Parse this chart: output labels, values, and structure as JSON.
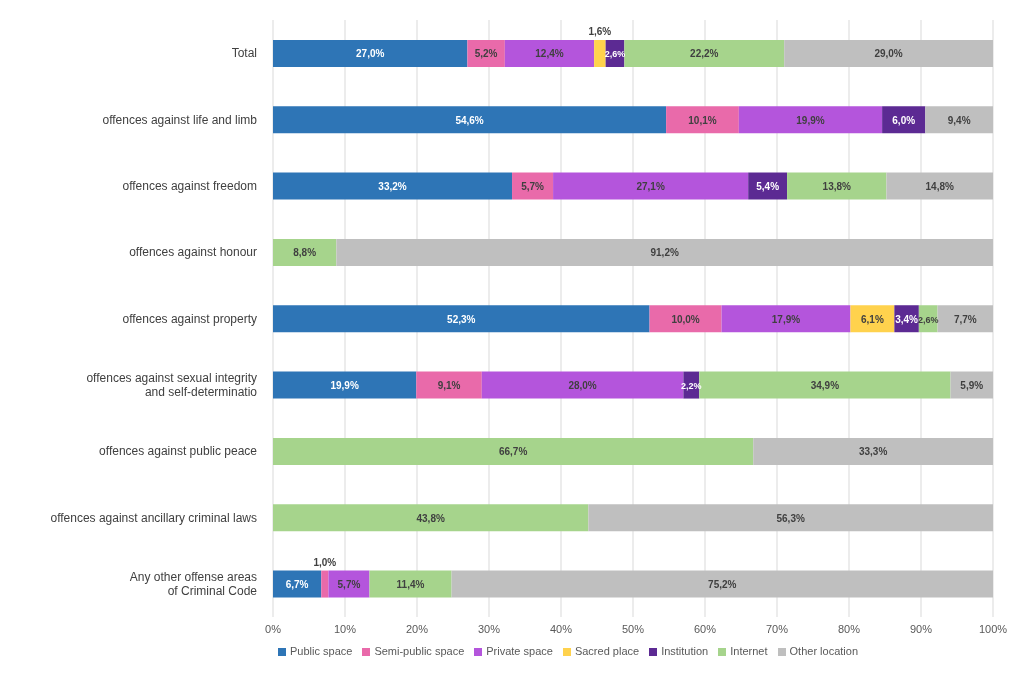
{
  "chart_data": {
    "type": "bar",
    "orientation": "horizontal",
    "stacked": true,
    "categories": [
      "Total",
      "offences against life and limb",
      "offences against freedom",
      "offences against honour",
      "offences against property",
      "offences against sexual integrity\nand self-determinatio",
      "offences against public peace",
      "offences against ancillary criminal laws",
      "Any other offense areas\nof Criminal Code"
    ],
    "series": [
      {
        "name": "Public space",
        "color": "#2e75b6",
        "values": [
          27.0,
          54.6,
          33.2,
          null,
          52.3,
          19.9,
          null,
          null,
          6.7
        ],
        "value_labels": [
          "27,0%",
          "54,6%",
          "33,2%",
          null,
          "52,3%",
          "19,9%",
          null,
          null,
          "6,7%"
        ]
      },
      {
        "name": "Semi-public space",
        "color": "#e96aaa",
        "values": [
          5.2,
          10.1,
          5.7,
          null,
          10.0,
          9.1,
          null,
          null,
          1.0
        ],
        "value_labels": [
          "5,2%",
          "10,1%",
          "5,7%",
          null,
          "10,0%",
          "9,1%",
          null,
          null,
          "1,0%"
        ]
      },
      {
        "name": "Private space",
        "color": "#b455dc",
        "values": [
          12.4,
          19.9,
          27.1,
          null,
          17.9,
          28.0,
          null,
          null,
          5.7
        ],
        "value_labels": [
          "12,4%",
          "19,9%",
          "27,1%",
          null,
          "17,9%",
          "28,0%",
          null,
          null,
          "5,7%"
        ]
      },
      {
        "name": "Sacred place",
        "color": "#ffd24d",
        "values": [
          1.6,
          null,
          null,
          null,
          6.1,
          null,
          null,
          null,
          null
        ],
        "value_labels": [
          "1,6%",
          null,
          null,
          null,
          "6,1%",
          null,
          null,
          null,
          null
        ]
      },
      {
        "name": "Institution",
        "color": "#5c2a93",
        "values": [
          2.6,
          6.0,
          5.4,
          null,
          3.4,
          2.2,
          null,
          null,
          null
        ],
        "value_labels": [
          "2,6%",
          "6,0%",
          "5,4%",
          null,
          "3,4%",
          "2,2%",
          null,
          null,
          null
        ]
      },
      {
        "name": "Internet",
        "color": "#a6d48c",
        "values": [
          22.2,
          null,
          13.8,
          8.8,
          2.6,
          34.9,
          66.7,
          43.8,
          11.4
        ],
        "value_labels": [
          "22,2%",
          null,
          "13,8%",
          "8,8%",
          "2,6%",
          "34,9%",
          "66,7%",
          "43,8%",
          "11,4%"
        ]
      },
      {
        "name": "Other location",
        "color": "#bfbfbf",
        "values": [
          29.0,
          9.4,
          14.8,
          91.2,
          7.7,
          5.9,
          33.3,
          56.3,
          75.2
        ],
        "value_labels": [
          "29,0%",
          "9,4%",
          "14,8%",
          "91,2%",
          "7,7%",
          "5,9%",
          "33,3%",
          "56,3%",
          "75,2%"
        ]
      }
    ],
    "xlim": [
      0,
      100
    ],
    "xticks": [
      {
        "value": 0,
        "label": "0%"
      },
      {
        "value": 10,
        "label": "10%"
      },
      {
        "value": 20,
        "label": "20%"
      },
      {
        "value": 30,
        "label": "30%"
      },
      {
        "value": 40,
        "label": "40%"
      },
      {
        "value": 50,
        "label": "50%"
      },
      {
        "value": 60,
        "label": "60%"
      },
      {
        "value": 70,
        "label": "70%"
      },
      {
        "value": 80,
        "label": "80%"
      },
      {
        "value": 90,
        "label": "90%"
      },
      {
        "value": 100,
        "label": "100%"
      }
    ],
    "grid": "x",
    "legend": "bottom left"
  }
}
